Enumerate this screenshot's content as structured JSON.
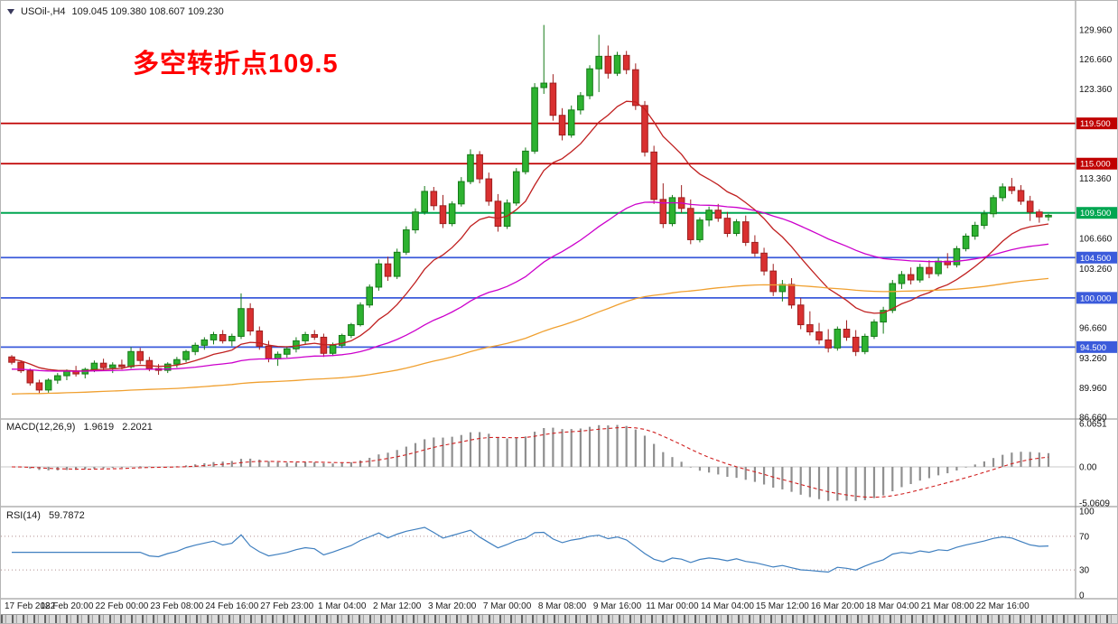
{
  "title": {
    "symbol": "USOil-,H4",
    "ohlc": "109.045 109.380 108.607 109.230"
  },
  "annotation": {
    "text": "多空转折点109.5",
    "color": "#ff0000"
  },
  "colors": {
    "background": "#ffffff",
    "bull": "#2db230",
    "bull_border": "#157a18",
    "bear": "#d93030",
    "bear_border": "#9e1f1f",
    "separator": "#8a8a8a",
    "axis_text": "#111111",
    "hline_red": "#c00000",
    "hline_green": "#00a651",
    "hline_blue": "#3b5bdb",
    "ma_fast": "#c02020",
    "ma_mid": "#cc00cc",
    "ma_slow": "#f0a030",
    "macd_hist": "#8f8f8f",
    "macd_signal": "#d02020",
    "rsi_line": "#3f7fbf",
    "rsi_level": "#b08f8f"
  },
  "chart_data": {
    "type": "candlestick",
    "symbol": "USOil-",
    "timeframe": "H4",
    "ohlc_current": {
      "open": 109.045,
      "high": 109.38,
      "low": 108.607,
      "close": 109.23
    },
    "price_axis": {
      "top_price": 133.19,
      "bottom_price": 86.46,
      "ticks": [
        "129.960",
        "126.660",
        "123.360",
        "113.360",
        "106.660",
        "103.260",
        "96.660",
        "93.260",
        "89.960",
        "86.660"
      ]
    },
    "hlines": [
      {
        "price": 119.5,
        "label": "119.500",
        "color_key": "hline_red"
      },
      {
        "price": 115.0,
        "label": "115.000",
        "color_key": "hline_red"
      },
      {
        "price": 109.5,
        "label": "109.500",
        "color_key": "hline_green"
      },
      {
        "price": 104.5,
        "label": "104.500",
        "color_key": "hline_blue"
      },
      {
        "price": 100.0,
        "label": "100.000",
        "color_key": "hline_blue"
      },
      {
        "price": 94.5,
        "label": "94.500",
        "color_key": "hline_blue"
      }
    ],
    "moving_averages": [
      {
        "name": "ma-fast",
        "period": 13,
        "seed": 93.2,
        "color_key": "ma_fast"
      },
      {
        "name": "ma-mid",
        "period": 50,
        "seed": 92.0,
        "color_key": "ma_mid"
      },
      {
        "name": "ma-slow",
        "period": 140,
        "seed": 89.2,
        "color_key": "ma_slow"
      }
    ],
    "candles": [
      [
        93.4,
        93.6,
        92.55,
        92.8
      ],
      [
        92.8,
        93.0,
        91.6,
        91.85
      ],
      [
        91.85,
        92.1,
        90.2,
        90.5
      ],
      [
        90.5,
        90.85,
        89.3,
        89.7
      ],
      [
        89.7,
        91.0,
        89.4,
        90.8
      ],
      [
        90.8,
        91.6,
        90.4,
        91.3
      ],
      [
        91.3,
        92.0,
        90.8,
        91.8
      ],
      [
        91.8,
        92.4,
        91.2,
        91.5
      ],
      [
        91.5,
        92.2,
        91.0,
        92.0
      ],
      [
        92.0,
        93.0,
        91.7,
        92.7
      ],
      [
        92.7,
        93.2,
        91.9,
        92.2
      ],
      [
        92.2,
        92.8,
        91.6,
        92.5
      ],
      [
        92.5,
        93.1,
        92.0,
        92.3
      ],
      [
        92.3,
        94.5,
        92.1,
        94.0
      ],
      [
        94.0,
        94.4,
        92.6,
        93.0
      ],
      [
        93.0,
        93.4,
        91.8,
        92.1
      ],
      [
        92.1,
        92.6,
        91.4,
        91.9
      ],
      [
        91.9,
        92.8,
        91.6,
        92.6
      ],
      [
        92.6,
        93.4,
        92.2,
        93.1
      ],
      [
        93.1,
        94.2,
        92.8,
        94.0
      ],
      [
        94.0,
        95.0,
        93.6,
        94.7
      ],
      [
        94.7,
        95.6,
        94.2,
        95.3
      ],
      [
        95.3,
        96.2,
        94.8,
        95.9
      ],
      [
        95.9,
        96.4,
        94.9,
        95.2
      ],
      [
        95.2,
        96.0,
        94.6,
        95.7
      ],
      [
        95.7,
        100.5,
        95.4,
        98.8
      ],
      [
        98.8,
        99.4,
        95.8,
        96.3
      ],
      [
        96.3,
        96.8,
        94.2,
        94.6
      ],
      [
        94.6,
        95.2,
        92.8,
        93.2
      ],
      [
        93.2,
        94.0,
        92.4,
        93.7
      ],
      [
        93.7,
        94.6,
        93.3,
        94.3
      ],
      [
        94.3,
        95.6,
        93.9,
        95.2
      ],
      [
        95.2,
        96.2,
        94.8,
        95.9
      ],
      [
        95.9,
        96.4,
        95.3,
        95.6
      ],
      [
        95.6,
        96.0,
        93.4,
        93.8
      ],
      [
        93.8,
        95.0,
        93.5,
        94.7
      ],
      [
        94.7,
        96.0,
        94.4,
        95.8
      ],
      [
        95.8,
        97.2,
        95.5,
        97.0
      ],
      [
        97.0,
        99.5,
        96.8,
        99.2
      ],
      [
        99.2,
        101.5,
        98.9,
        101.2
      ],
      [
        101.2,
        104.3,
        100.8,
        103.8
      ],
      [
        103.8,
        104.6,
        101.9,
        102.4
      ],
      [
        102.4,
        105.5,
        102.1,
        105.1
      ],
      [
        105.1,
        108.0,
        104.8,
        107.6
      ],
      [
        107.6,
        110.0,
        107.2,
        109.6
      ],
      [
        109.6,
        112.5,
        109.3,
        111.9
      ],
      [
        111.9,
        112.4,
        109.8,
        110.3
      ],
      [
        110.3,
        111.5,
        107.8,
        108.3
      ],
      [
        108.3,
        110.8,
        108.0,
        110.5
      ],
      [
        110.5,
        113.5,
        110.2,
        113.0
      ],
      [
        113.0,
        116.6,
        112.7,
        116.0
      ],
      [
        116.0,
        116.4,
        112.8,
        113.3
      ],
      [
        113.3,
        114.0,
        110.3,
        110.8
      ],
      [
        110.8,
        111.6,
        107.4,
        108.0
      ],
      [
        108.0,
        111.0,
        107.7,
        110.6
      ],
      [
        110.6,
        114.5,
        110.3,
        114.1
      ],
      [
        114.1,
        116.8,
        113.8,
        116.4
      ],
      [
        116.4,
        124.0,
        116.1,
        123.5
      ],
      [
        123.5,
        130.5,
        122.8,
        124.0
      ],
      [
        124.0,
        125.0,
        119.8,
        120.4
      ],
      [
        120.4,
        121.2,
        117.6,
        118.2
      ],
      [
        118.2,
        121.5,
        117.9,
        121.0
      ],
      [
        121.0,
        123.0,
        120.5,
        122.6
      ],
      [
        122.6,
        126.0,
        122.2,
        125.6
      ],
      [
        125.6,
        129.4,
        123.0,
        127.0
      ],
      [
        127.0,
        128.2,
        124.5,
        125.1
      ],
      [
        125.1,
        127.5,
        124.8,
        127.1
      ],
      [
        127.1,
        127.6,
        125.0,
        125.5
      ],
      [
        125.5,
        126.2,
        121.0,
        121.5
      ],
      [
        121.5,
        122.0,
        115.8,
        116.3
      ],
      [
        116.3,
        117.0,
        110.5,
        111.0
      ],
      [
        111.0,
        112.8,
        107.8,
        108.3
      ],
      [
        108.3,
        111.5,
        108.0,
        111.2
      ],
      [
        111.2,
        112.6,
        109.5,
        110.0
      ],
      [
        110.0,
        111.0,
        106.0,
        106.5
      ],
      [
        106.5,
        109.0,
        106.2,
        108.7
      ],
      [
        108.7,
        110.2,
        108.0,
        109.8
      ],
      [
        109.8,
        110.5,
        108.5,
        108.9
      ],
      [
        108.9,
        109.6,
        106.8,
        107.2
      ],
      [
        107.2,
        108.8,
        106.9,
        108.5
      ],
      [
        108.5,
        109.2,
        105.8,
        106.2
      ],
      [
        106.2,
        107.0,
        104.6,
        105.0
      ],
      [
        105.0,
        105.6,
        102.5,
        103.0
      ],
      [
        103.0,
        103.8,
        100.2,
        100.7
      ],
      [
        100.7,
        102.0,
        99.6,
        101.5
      ],
      [
        101.5,
        102.2,
        98.8,
        99.2
      ],
      [
        99.2,
        100.0,
        96.5,
        97.0
      ],
      [
        97.0,
        98.5,
        95.8,
        96.2
      ],
      [
        96.2,
        97.2,
        94.8,
        95.3
      ],
      [
        95.3,
        96.5,
        93.9,
        94.4
      ],
      [
        94.4,
        96.8,
        94.1,
        96.5
      ],
      [
        96.5,
        97.5,
        95.2,
        95.6
      ],
      [
        95.6,
        96.4,
        93.5,
        94.0
      ],
      [
        94.0,
        96.0,
        93.7,
        95.7
      ],
      [
        95.7,
        97.6,
        95.4,
        97.3
      ],
      [
        97.3,
        99.0,
        96.0,
        98.6
      ],
      [
        98.6,
        102.0,
        98.3,
        101.6
      ],
      [
        101.6,
        103.0,
        101.0,
        102.6
      ],
      [
        102.6,
        103.4,
        101.5,
        102.0
      ],
      [
        102.0,
        103.8,
        101.7,
        103.4
      ],
      [
        103.4,
        104.2,
        102.2,
        102.7
      ],
      [
        102.7,
        104.5,
        102.4,
        104.1
      ],
      [
        104.1,
        105.0,
        103.3,
        103.7
      ],
      [
        103.7,
        105.8,
        103.4,
        105.5
      ],
      [
        105.5,
        107.2,
        105.2,
        106.9
      ],
      [
        106.9,
        108.5,
        106.5,
        108.1
      ],
      [
        108.1,
        109.8,
        107.7,
        109.4
      ],
      [
        109.4,
        111.5,
        109.0,
        111.2
      ],
      [
        111.2,
        112.8,
        110.8,
        112.4
      ],
      [
        112.4,
        113.4,
        111.6,
        112.0
      ],
      [
        112.0,
        112.6,
        110.4,
        110.8
      ],
      [
        110.8,
        111.4,
        108.6,
        109.6
      ],
      [
        109.6,
        109.9,
        108.4,
        109.05
      ],
      [
        109.05,
        109.38,
        108.61,
        109.23
      ]
    ],
    "time_labels": [
      "17 Feb 2022",
      "18 Feb 20:00",
      "22 Feb 00:00",
      "23 Feb 08:00",
      "24 Feb 16:00",
      "27 Feb 23:00",
      "1 Mar 04:00",
      "2 Mar 12:00",
      "3 Mar 20:00",
      "7 Mar 00:00",
      "8 Mar 08:00",
      "9 Mar 16:00",
      "11 Mar 00:00",
      "14 Mar 04:00",
      "15 Mar 12:00",
      "16 Mar 20:00",
      "18 Mar 04:00",
      "21 Mar 08:00",
      "22 Mar 16:00"
    ],
    "label_step": 6,
    "macd": {
      "label": "MACD(12,26,9)",
      "value_main": "1.9619",
      "value_signal": "2.2021",
      "fast": 12,
      "slow": 26,
      "signal": 9,
      "axis_max": 6.0651,
      "axis_min": -5.0609,
      "axis_ticks": [
        "6.0651",
        "0.00",
        "-5.0609"
      ]
    },
    "rsi": {
      "label": "RSI(14)",
      "value": "59.7872",
      "period": 14,
      "levels": [
        70,
        30
      ],
      "axis_ticks": [
        "100",
        "70",
        "30",
        "0"
      ]
    }
  }
}
